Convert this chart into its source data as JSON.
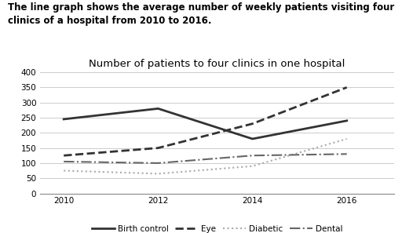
{
  "title": "Number of patients to four clinics in one hospital",
  "description_line1": "The line graph shows the average number of weekly patients visiting four",
  "description_line2": "clinics of a hospital from 2010 to 2016.",
  "years": [
    2010,
    2012,
    2014,
    2016
  ],
  "series": {
    "Birth control": [
      245,
      280,
      180,
      240
    ],
    "Eye": [
      125,
      150,
      230,
      350
    ],
    "Diabetic": [
      75,
      65,
      90,
      180
    ],
    "Dental": [
      105,
      100,
      125,
      130
    ]
  },
  "styles": {
    "Birth control": {
      "color": "#333333",
      "linestyle": "-",
      "linewidth": 2.0
    },
    "Eye": {
      "color": "#333333",
      "linestyle": "--",
      "linewidth": 2.0
    },
    "Diabetic": {
      "color": "#aaaaaa",
      "linestyle": ":",
      "linewidth": 1.5
    },
    "Dental": {
      "color": "#666666",
      "linestyle": "-.",
      "linewidth": 1.5
    }
  },
  "ylim": [
    0,
    400
  ],
  "yticks": [
    0,
    50,
    100,
    150,
    200,
    250,
    300,
    350,
    400
  ],
  "xlim": [
    2009.5,
    2017.0
  ],
  "xticks": [
    2010,
    2012,
    2014,
    2016
  ],
  "background_color": "#ffffff",
  "grid_color": "#cccccc",
  "description_fontsize": 8.5,
  "title_fontsize": 9.5,
  "tick_fontsize": 7.5,
  "legend_fontsize": 7.5
}
